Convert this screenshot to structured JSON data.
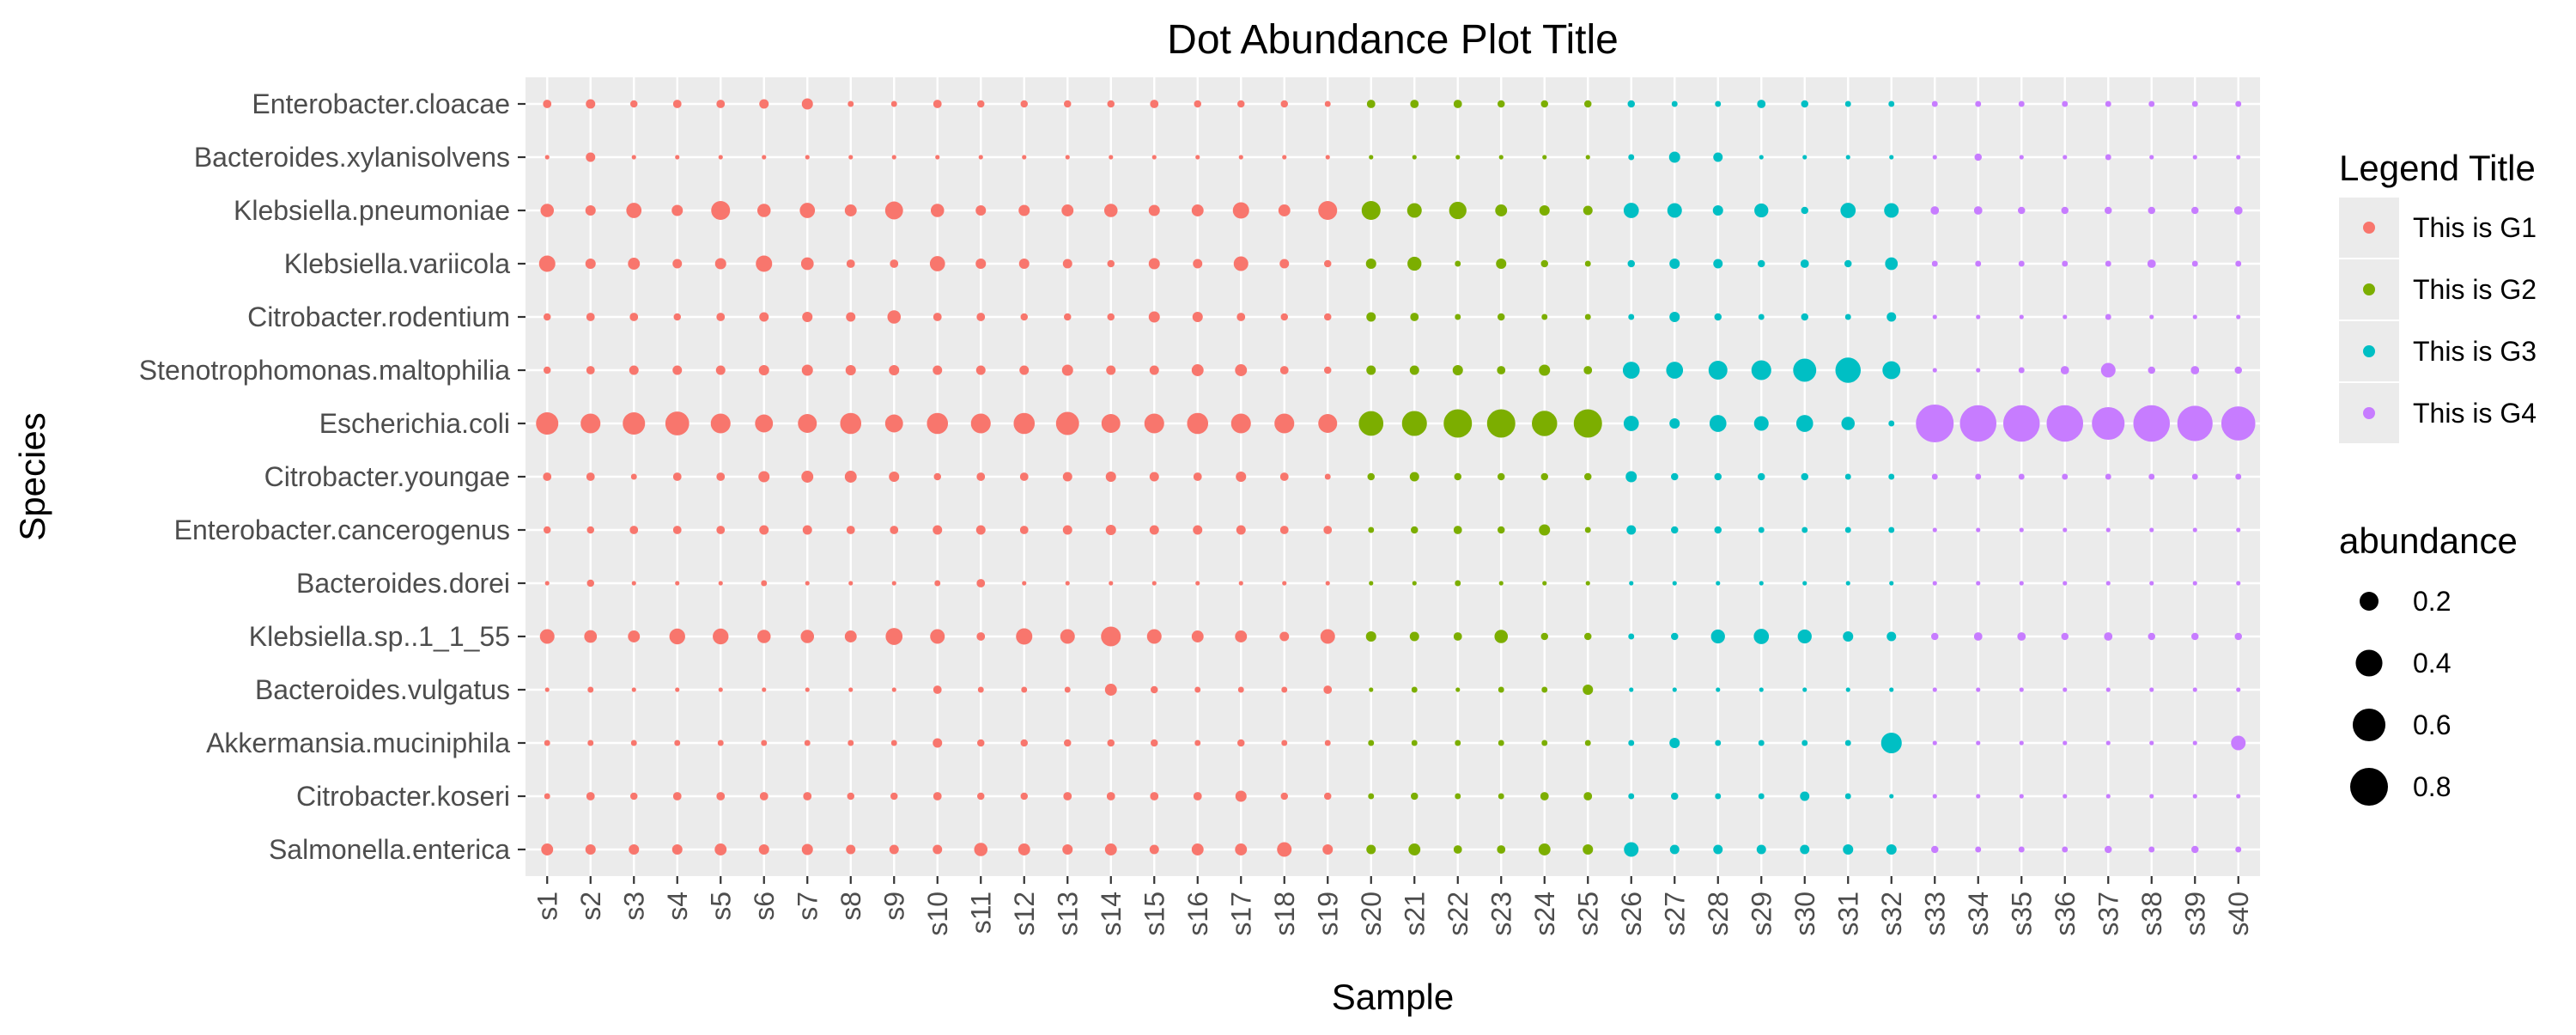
{
  "chart_data": {
    "type": "scatter",
    "title": "Dot Abundance Plot Title",
    "xlabel": "Sample",
    "ylabel": "Species",
    "grid": true,
    "legend_position": "right",
    "samples": [
      "s1",
      "s2",
      "s3",
      "s4",
      "s5",
      "s6",
      "s7",
      "s8",
      "s9",
      "s10",
      "s11",
      "s12",
      "s13",
      "s14",
      "s15",
      "s16",
      "s17",
      "s18",
      "s19",
      "s20",
      "s21",
      "s22",
      "s23",
      "s24",
      "s25",
      "s26",
      "s27",
      "s28",
      "s29",
      "s30",
      "s31",
      "s32",
      "s33",
      "s34",
      "s35",
      "s36",
      "s37",
      "s38",
      "s39",
      "s40"
    ],
    "species": [
      "Enterobacter.cloacae",
      "Bacteroides.xylanisolvens",
      "Klebsiella.pneumoniae",
      "Klebsiella.variicola",
      "Citrobacter.rodentium",
      "Stenotrophomonas.maltophilia",
      "Escherichia.coli",
      "Citrobacter.youngae",
      "Enterobacter.cancerogenus",
      "Bacteroides.dorei",
      "Klebsiella.sp..1_1_55",
      "Bacteroides.vulgatus",
      "Akkermansia.muciniphila",
      "Citrobacter.koseri",
      "Salmonella.enterica"
    ],
    "color_legend": {
      "title": "Legend Title",
      "groups": [
        {
          "label": "This is G1",
          "color": "#F8766D",
          "samples": [
            1,
            19
          ]
        },
        {
          "label": "This is G2",
          "color": "#7CAE00",
          "samples": [
            20,
            25
          ]
        },
        {
          "label": "This is G3",
          "color": "#00BFC4",
          "samples": [
            26,
            32
          ]
        },
        {
          "label": "This is G4",
          "color": "#C77CFF",
          "samples": [
            33,
            40
          ]
        }
      ]
    },
    "size_legend": {
      "title": "abundance",
      "values": [
        0.2,
        0.4,
        0.6,
        0.8
      ],
      "labels": [
        "0.2",
        "0.4",
        "0.6",
        "0.8"
      ]
    },
    "size_range": [
      0,
      0.8
    ],
    "abundance": [
      [
        0.04,
        0.05,
        0.03,
        0.04,
        0.04,
        0.05,
        0.07,
        0.02,
        0.02,
        0.04,
        0.03,
        0.03,
        0.03,
        0.03,
        0.04,
        0.03,
        0.03,
        0.03,
        0.02,
        0.04,
        0.04,
        0.04,
        0.03,
        0.03,
        0.03,
        0.03,
        0.02,
        0.02,
        0.04,
        0.03,
        0.02,
        0.02,
        0.02,
        0.02,
        0.02,
        0.02,
        0.02,
        0.02,
        0.02,
        0.02
      ],
      [
        0.01,
        0.05,
        0.01,
        0.01,
        0.01,
        0.01,
        0.01,
        0.01,
        0.01,
        0.01,
        0.01,
        0.01,
        0.01,
        0.01,
        0.01,
        0.01,
        0.01,
        0.01,
        0.01,
        0.01,
        0.01,
        0.01,
        0.01,
        0.01,
        0.01,
        0.02,
        0.07,
        0.05,
        0.01,
        0.01,
        0.01,
        0.01,
        0.01,
        0.03,
        0.01,
        0.01,
        0.02,
        0.01,
        0.01,
        0.01
      ],
      [
        0.1,
        0.06,
        0.13,
        0.07,
        0.2,
        0.1,
        0.13,
        0.08,
        0.18,
        0.1,
        0.06,
        0.07,
        0.08,
        0.1,
        0.07,
        0.08,
        0.15,
        0.08,
        0.2,
        0.2,
        0.12,
        0.17,
        0.08,
        0.06,
        0.05,
        0.13,
        0.12,
        0.06,
        0.11,
        0.03,
        0.13,
        0.12,
        0.04,
        0.04,
        0.03,
        0.03,
        0.03,
        0.03,
        0.03,
        0.04
      ],
      [
        0.15,
        0.06,
        0.08,
        0.05,
        0.07,
        0.15,
        0.09,
        0.04,
        0.04,
        0.13,
        0.06,
        0.06,
        0.05,
        0.03,
        0.07,
        0.05,
        0.12,
        0.05,
        0.03,
        0.06,
        0.11,
        0.02,
        0.06,
        0.03,
        0.02,
        0.03,
        0.06,
        0.05,
        0.03,
        0.04,
        0.03,
        0.09,
        0.02,
        0.02,
        0.02,
        0.02,
        0.02,
        0.04,
        0.02,
        0.02
      ],
      [
        0.03,
        0.04,
        0.04,
        0.03,
        0.04,
        0.05,
        0.06,
        0.05,
        0.1,
        0.04,
        0.04,
        0.03,
        0.03,
        0.03,
        0.07,
        0.06,
        0.04,
        0.03,
        0.03,
        0.05,
        0.04,
        0.02,
        0.03,
        0.02,
        0.02,
        0.02,
        0.06,
        0.03,
        0.02,
        0.03,
        0.02,
        0.05,
        0.01,
        0.01,
        0.01,
        0.01,
        0.02,
        0.01,
        0.01,
        0.01
      ],
      [
        0.03,
        0.04,
        0.05,
        0.05,
        0.05,
        0.06,
        0.07,
        0.06,
        0.06,
        0.05,
        0.05,
        0.05,
        0.07,
        0.05,
        0.05,
        0.08,
        0.08,
        0.04,
        0.03,
        0.05,
        0.05,
        0.06,
        0.04,
        0.07,
        0.04,
        0.16,
        0.16,
        0.2,
        0.22,
        0.3,
        0.36,
        0.18,
        0.01,
        0.01,
        0.02,
        0.04,
        0.12,
        0.03,
        0.04,
        0.03
      ],
      [
        0.28,
        0.22,
        0.28,
        0.32,
        0.22,
        0.18,
        0.2,
        0.25,
        0.18,
        0.25,
        0.22,
        0.25,
        0.3,
        0.2,
        0.22,
        0.25,
        0.22,
        0.22,
        0.2,
        0.34,
        0.35,
        0.45,
        0.45,
        0.36,
        0.45,
        0.13,
        0.06,
        0.16,
        0.12,
        0.16,
        0.1,
        0.02,
        0.8,
        0.75,
        0.75,
        0.75,
        0.6,
        0.75,
        0.7,
        0.65
      ],
      [
        0.04,
        0.04,
        0.02,
        0.04,
        0.04,
        0.07,
        0.08,
        0.08,
        0.06,
        0.03,
        0.04,
        0.04,
        0.05,
        0.06,
        0.05,
        0.04,
        0.06,
        0.04,
        0.02,
        0.03,
        0.05,
        0.03,
        0.03,
        0.03,
        0.03,
        0.07,
        0.03,
        0.03,
        0.03,
        0.03,
        0.02,
        0.02,
        0.02,
        0.02,
        0.02,
        0.02,
        0.02,
        0.02,
        0.02,
        0.02
      ],
      [
        0.03,
        0.03,
        0.04,
        0.04,
        0.04,
        0.05,
        0.05,
        0.04,
        0.04,
        0.05,
        0.05,
        0.04,
        0.05,
        0.06,
        0.05,
        0.05,
        0.05,
        0.04,
        0.04,
        0.02,
        0.03,
        0.04,
        0.03,
        0.07,
        0.02,
        0.05,
        0.03,
        0.03,
        0.02,
        0.02,
        0.02,
        0.02,
        0.01,
        0.01,
        0.01,
        0.01,
        0.01,
        0.01,
        0.01,
        0.01
      ],
      [
        0.01,
        0.03,
        0.01,
        0.01,
        0.01,
        0.02,
        0.01,
        0.01,
        0.01,
        0.02,
        0.04,
        0.01,
        0.01,
        0.01,
        0.01,
        0.01,
        0.01,
        0.01,
        0.01,
        0.01,
        0.01,
        0.02,
        0.01,
        0.01,
        0.01,
        0.01,
        0.01,
        0.01,
        0.01,
        0.01,
        0.01,
        0.01,
        0.01,
        0.01,
        0.01,
        0.01,
        0.01,
        0.01,
        0.01,
        0.01
      ],
      [
        0.12,
        0.09,
        0.08,
        0.14,
        0.14,
        0.1,
        0.1,
        0.08,
        0.16,
        0.12,
        0.04,
        0.15,
        0.12,
        0.22,
        0.12,
        0.08,
        0.08,
        0.05,
        0.12,
        0.06,
        0.05,
        0.04,
        0.1,
        0.03,
        0.03,
        0.02,
        0.03,
        0.11,
        0.13,
        0.11,
        0.06,
        0.05,
        0.03,
        0.04,
        0.04,
        0.03,
        0.04,
        0.03,
        0.03,
        0.03
      ],
      [
        0.01,
        0.02,
        0.01,
        0.01,
        0.01,
        0.01,
        0.01,
        0.01,
        0.01,
        0.04,
        0.02,
        0.02,
        0.02,
        0.08,
        0.03,
        0.02,
        0.02,
        0.02,
        0.04,
        0.01,
        0.02,
        0.01,
        0.02,
        0.02,
        0.06,
        0.01,
        0.01,
        0.01,
        0.01,
        0.01,
        0.01,
        0.01,
        0.01,
        0.01,
        0.01,
        0.01,
        0.01,
        0.01,
        0.01,
        0.01
      ],
      [
        0.02,
        0.02,
        0.02,
        0.02,
        0.02,
        0.02,
        0.02,
        0.02,
        0.02,
        0.05,
        0.03,
        0.03,
        0.03,
        0.03,
        0.03,
        0.02,
        0.03,
        0.02,
        0.02,
        0.02,
        0.02,
        0.02,
        0.02,
        0.02,
        0.02,
        0.02,
        0.06,
        0.02,
        0.02,
        0.02,
        0.02,
        0.24,
        0.01,
        0.01,
        0.01,
        0.01,
        0.01,
        0.01,
        0.01,
        0.12
      ],
      [
        0.02,
        0.04,
        0.03,
        0.04,
        0.04,
        0.04,
        0.04,
        0.03,
        0.03,
        0.04,
        0.03,
        0.03,
        0.04,
        0.04,
        0.04,
        0.04,
        0.07,
        0.03,
        0.03,
        0.02,
        0.03,
        0.02,
        0.02,
        0.04,
        0.04,
        0.02,
        0.03,
        0.02,
        0.02,
        0.05,
        0.02,
        0.01,
        0.01,
        0.01,
        0.01,
        0.01,
        0.01,
        0.01,
        0.01,
        0.01
      ],
      [
        0.08,
        0.06,
        0.06,
        0.06,
        0.08,
        0.06,
        0.07,
        0.05,
        0.05,
        0.05,
        0.1,
        0.08,
        0.06,
        0.08,
        0.05,
        0.08,
        0.08,
        0.12,
        0.06,
        0.05,
        0.08,
        0.04,
        0.04,
        0.08,
        0.06,
        0.12,
        0.05,
        0.05,
        0.05,
        0.05,
        0.06,
        0.06,
        0.03,
        0.02,
        0.02,
        0.02,
        0.03,
        0.02,
        0.03,
        0.02
      ]
    ]
  }
}
